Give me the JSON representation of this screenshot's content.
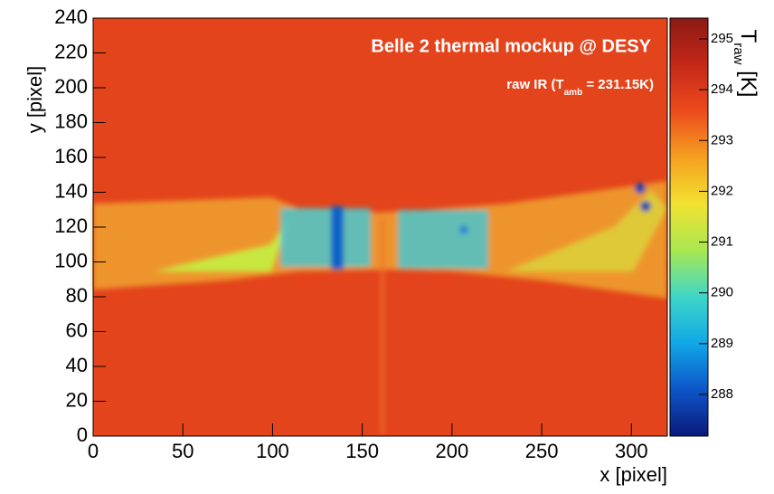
{
  "chart_data": {
    "type": "heatmap",
    "title": "Belle 2 thermal mockup @ DESY",
    "subtitle": [
      "raw IR (T",
      "amb",
      " = 231.15K)"
    ],
    "x_label": "x [pixel]",
    "y_label": "y [pixel]",
    "colorbar_label": [
      "T",
      "raw",
      " [K]"
    ],
    "xlim": [
      0,
      320
    ],
    "xticks": [
      0,
      50,
      100,
      150,
      200,
      250,
      300
    ],
    "ylim": [
      0,
      240
    ],
    "yticks": [
      0,
      20,
      40,
      60,
      80,
      100,
      120,
      140,
      160,
      180,
      200,
      220,
      240
    ],
    "zlim": [
      287.18,
      295.41
    ],
    "zticks": [
      288,
      289,
      290,
      291,
      292,
      293,
      294,
      295
    ],
    "colormap": [
      "#0a1a7a",
      "#0d55c8",
      "#10a8e6",
      "#3fd6c8",
      "#a8e850",
      "#f2e230",
      "#f5a020",
      "#ec4a1c",
      "#c42818",
      "#8a1a14"
    ]
  }
}
